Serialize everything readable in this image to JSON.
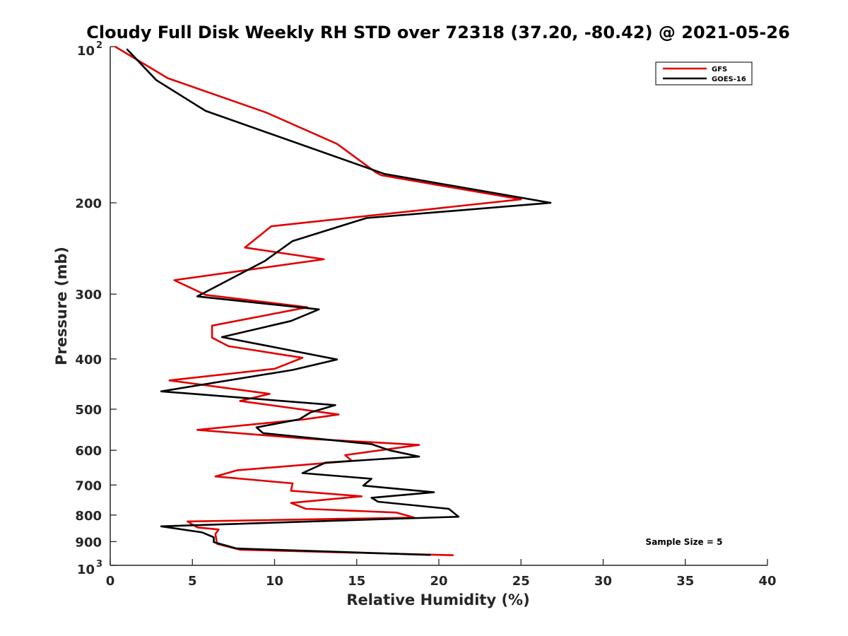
{
  "chart_data": {
    "type": "line",
    "title": "Cloudy Full Disk Weekly RH STD over 72318 (37.20, -80.42) @ 2021-05-26",
    "xlabel": "Relative Humidity (%)",
    "ylabel": "Pressure (mb)",
    "xlim": [
      0,
      40
    ],
    "ylim": [
      100,
      1000
    ],
    "yscale": "log",
    "y_reversed": true,
    "grid": false,
    "xticks": [
      0,
      5,
      10,
      15,
      20,
      25,
      30,
      35,
      40
    ],
    "xtick_labels": [
      "0",
      "5",
      "10",
      "15",
      "20",
      "25",
      "30",
      "35",
      "40"
    ],
    "yticks": [
      100,
      200,
      300,
      400,
      500,
      600,
      700,
      800,
      900,
      1000
    ],
    "ytick_labels": [
      {
        "base": "10",
        "exp": "2"
      },
      {
        "base": "200",
        "exp": ""
      },
      {
        "base": "300",
        "exp": ""
      },
      {
        "base": "400",
        "exp": ""
      },
      {
        "base": "500",
        "exp": ""
      },
      {
        "base": "600",
        "exp": ""
      },
      {
        "base": "700",
        "exp": ""
      },
      {
        "base": "800",
        "exp": ""
      },
      {
        "base": "900",
        "exp": ""
      },
      {
        "base": "10",
        "exp": "3"
      }
    ],
    "legend_position": "top-right",
    "annotation": "Sample Size = 5",
    "series": [
      {
        "name": "GFS",
        "color": "#e00000",
        "points": [
          [
            0.3,
            100
          ],
          [
            3.5,
            115
          ],
          [
            9.5,
            134
          ],
          [
            13.8,
            154
          ],
          [
            16.2,
            175
          ],
          [
            16.5,
            177
          ],
          [
            25,
            197
          ],
          [
            9.8,
            222
          ],
          [
            8.2,
            244
          ],
          [
            13,
            257
          ],
          [
            3.9,
            282
          ],
          [
            5.8,
            301
          ],
          [
            12,
            318
          ],
          [
            6.2,
            345
          ],
          [
            6.2,
            364
          ],
          [
            7.2,
            378
          ],
          [
            11.7,
            398
          ],
          [
            10,
            418
          ],
          [
            3.6,
            440
          ],
          [
            9.7,
            467
          ],
          [
            7.9,
            482
          ],
          [
            13.9,
            512
          ],
          [
            11.8,
            523
          ],
          [
            5.3,
            548
          ],
          [
            12,
            570
          ],
          [
            18.8,
            586
          ],
          [
            14.3,
            613
          ],
          [
            14.7,
            629
          ],
          [
            7.7,
            656
          ],
          [
            6.4,
            674
          ],
          [
            11.1,
            695
          ],
          [
            11,
            718
          ],
          [
            15.3,
            736
          ],
          [
            11,
            758
          ],
          [
            11.9,
            778
          ],
          [
            17.4,
            791
          ],
          [
            18.5,
            809
          ],
          [
            4.7,
            823
          ],
          [
            5.3,
            845
          ],
          [
            6.6,
            853
          ],
          [
            6.4,
            870
          ],
          [
            6.5,
            909
          ],
          [
            7.9,
            933
          ],
          [
            20.9,
            956
          ]
        ]
      },
      {
        "name": "GOES-16",
        "color": "#000000",
        "points": [
          [
            1,
            101
          ],
          [
            2.8,
            116
          ],
          [
            5.8,
            133
          ],
          [
            16.7,
            176
          ],
          [
            26.8,
            200
          ],
          [
            15.6,
            214
          ],
          [
            11.1,
            237
          ],
          [
            9.4,
            259
          ],
          [
            5.3,
            303
          ],
          [
            12.7,
            321
          ],
          [
            11,
            338
          ],
          [
            6.8,
            363
          ],
          [
            10.6,
            383
          ],
          [
            13.8,
            401
          ],
          [
            11.1,
            420
          ],
          [
            3.1,
            462
          ],
          [
            13.7,
            491
          ],
          [
            12.2,
            507
          ],
          [
            11.5,
            523
          ],
          [
            8.9,
            542
          ],
          [
            9.3,
            556
          ],
          [
            15.9,
            584
          ],
          [
            17,
            600
          ],
          [
            18.8,
            617
          ],
          [
            13.1,
            634
          ],
          [
            11.7,
            664
          ],
          [
            15.9,
            681
          ],
          [
            15.4,
            702
          ],
          [
            19.7,
            723
          ],
          [
            15.9,
            741
          ],
          [
            16.3,
            754
          ],
          [
            20.6,
            778
          ],
          [
            21.2,
            806
          ],
          [
            3.1,
            841
          ],
          [
            5.6,
            864
          ],
          [
            6.3,
            883
          ],
          [
            6.3,
            902
          ],
          [
            7.7,
            928
          ],
          [
            19.5,
            955
          ]
        ]
      }
    ]
  }
}
